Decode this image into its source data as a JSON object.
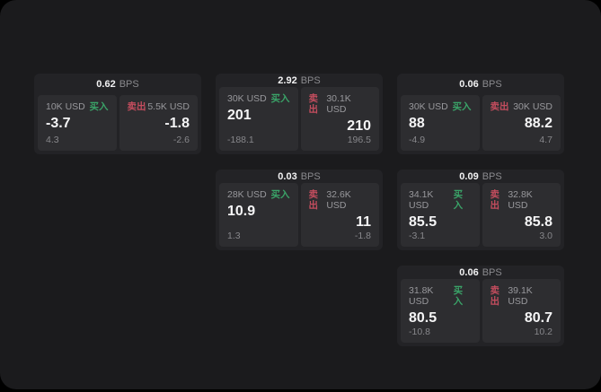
{
  "labels": {
    "bps_unit": "BPS",
    "buy": "买入",
    "sell": "卖出"
  },
  "colors": {
    "page_bg": "#1b1b1d",
    "card_bg": "#232326",
    "panel_bg": "#2d2d30",
    "buy": "#3aa368",
    "sell": "#c44d5e"
  },
  "cards": [
    {
      "bps": "0.62",
      "buy": {
        "amount": "10K USD",
        "value": "-3.7",
        "sub": "4.3"
      },
      "sell": {
        "amount": "5.5K USD",
        "value": "-1.8",
        "sub": "-2.6"
      }
    },
    {
      "bps": "2.92",
      "buy": {
        "amount": "30K USD",
        "value": "201",
        "sub": "-188.1"
      },
      "sell": {
        "amount": "30.1K USD",
        "value": "210",
        "sub": "196.5"
      }
    },
    {
      "bps": "0.06",
      "buy": {
        "amount": "30K USD",
        "value": "88",
        "sub": "-4.9"
      },
      "sell": {
        "amount": "30K USD",
        "value": "88.2",
        "sub": "4.7"
      }
    },
    {
      "bps": "0.03",
      "buy": {
        "amount": "28K USD",
        "value": "10.9",
        "sub": "1.3"
      },
      "sell": {
        "amount": "32.6K USD",
        "value": "11",
        "sub": "-1.8"
      }
    },
    {
      "bps": "0.09",
      "buy": {
        "amount": "34.1K USD",
        "value": "85.5",
        "sub": "-3.1"
      },
      "sell": {
        "amount": "32.8K USD",
        "value": "85.8",
        "sub": "3.0"
      }
    },
    {
      "bps": "0.06",
      "buy": {
        "amount": "31.8K USD",
        "value": "80.5",
        "sub": "-10.8"
      },
      "sell": {
        "amount": "39.1K USD",
        "value": "80.7",
        "sub": "10.2"
      }
    }
  ]
}
